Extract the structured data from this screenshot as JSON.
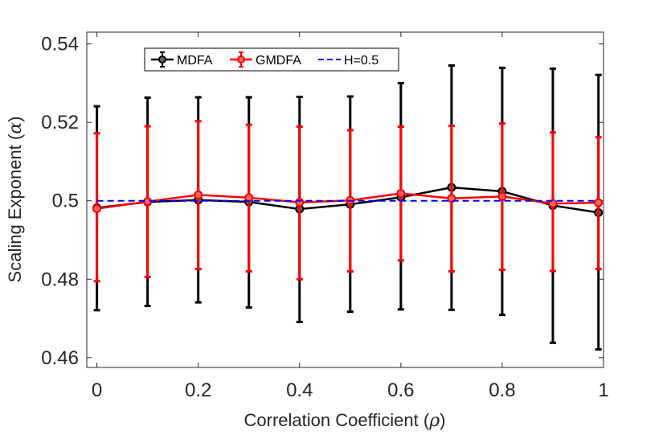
{
  "chart_data": {
    "type": "line",
    "title": "",
    "xlabel": "Correlation Coefficient",
    "xlabel_symbol": "ρ",
    "ylabel": "Scaling Exponent",
    "ylabel_symbol": "α",
    "xlim": [
      -0.02,
      1.0
    ],
    "ylim": [
      0.4575,
      0.543
    ],
    "x_ticks": [
      0,
      0.2,
      0.4,
      0.6,
      0.8,
      1
    ],
    "x_tick_labels": [
      "0",
      "0.2",
      "0.4",
      "0.6",
      "0.8",
      "1"
    ],
    "y_ticks": [
      0.46,
      0.48,
      0.5,
      0.52,
      0.54
    ],
    "y_tick_labels": [
      "0.46",
      "0.48",
      "0.5",
      "0.52",
      "0.54"
    ],
    "grid": false,
    "legend_position": "top-left",
    "x": [
      0,
      0.1,
      0.2,
      0.3,
      0.4,
      0.5,
      0.6,
      0.7,
      0.8,
      0.9,
      0.99
    ],
    "series": [
      {
        "name": "MDFA",
        "color": "#000000",
        "style": "solid-with-errorbars",
        "values": [
          0.4982,
          0.4997,
          0.5002,
          0.4997,
          0.4979,
          0.4991,
          0.5009,
          0.5034,
          0.5024,
          0.4988,
          0.497
        ],
        "err_low": [
          0.4721,
          0.4732,
          0.4741,
          0.4728,
          0.4691,
          0.4717,
          0.4723,
          0.4722,
          0.4709,
          0.4638,
          0.4621
        ],
        "err_high": [
          0.5241,
          0.5263,
          0.5264,
          0.5264,
          0.5265,
          0.5266,
          0.53,
          0.5345,
          0.5339,
          0.5337,
          0.5321
        ]
      },
      {
        "name": "GMDFA",
        "color": "#ff0000",
        "style": "solid-with-errorbars",
        "values": [
          0.498,
          0.4998,
          0.5015,
          0.5008,
          0.4996,
          0.5001,
          0.5019,
          0.5006,
          0.5011,
          0.4993,
          0.4995
        ],
        "err_low": [
          0.4795,
          0.4806,
          0.4826,
          0.482,
          0.48,
          0.482,
          0.4848,
          0.482,
          0.4824,
          0.4821,
          0.4826
        ],
        "err_high": [
          0.5172,
          0.519,
          0.5203,
          0.5194,
          0.5189,
          0.518,
          0.5189,
          0.5191,
          0.5197,
          0.5174,
          0.5162
        ]
      },
      {
        "name": "H=0.5",
        "color": "#0000ff",
        "style": "dashed",
        "values": [
          0.5,
          0.5,
          0.5,
          0.5,
          0.5,
          0.5,
          0.5,
          0.5,
          0.5,
          0.5,
          0.5
        ]
      }
    ]
  }
}
